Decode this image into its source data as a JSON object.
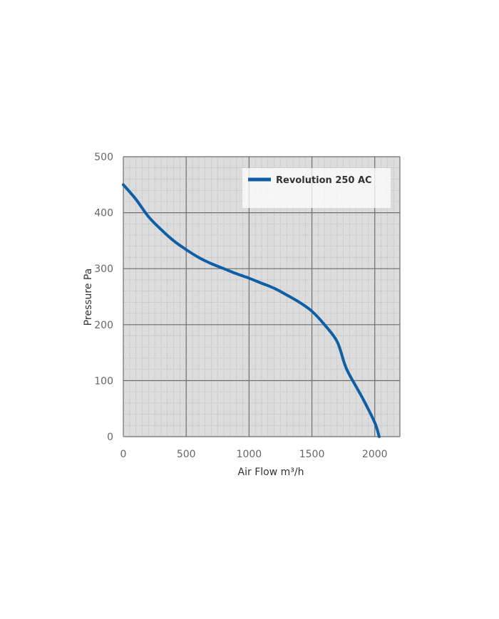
{
  "chart_data": {
    "type": "line",
    "xlabel": "Air Flow m³/h",
    "ylabel": "Pressure Pa",
    "xlim": [
      0,
      2200
    ],
    "ylim": [
      0,
      500
    ],
    "x_ticks": [
      "0",
      "500",
      "1000",
      "1500",
      "2000"
    ],
    "y_ticks": [
      "0",
      "100",
      "200",
      "300",
      "400",
      "500"
    ],
    "grid": true,
    "legend_position": "top-right",
    "series": [
      {
        "name": "Revolution 250 AC",
        "color": "#0f5fa6",
        "x": [
          0,
          100,
          200,
          300,
          400,
          500,
          600,
          700,
          800,
          900,
          1000,
          1100,
          1200,
          1300,
          1400,
          1500,
          1600,
          1700,
          1760,
          1800,
          1900,
          2000,
          2035
        ],
        "y": [
          450,
          424,
          393,
          370,
          350,
          334,
          320,
          309,
          300,
          291,
          283,
          274,
          265,
          253,
          240,
          224,
          200,
          170,
          130,
          110,
          70,
          25,
          0
        ]
      }
    ]
  }
}
